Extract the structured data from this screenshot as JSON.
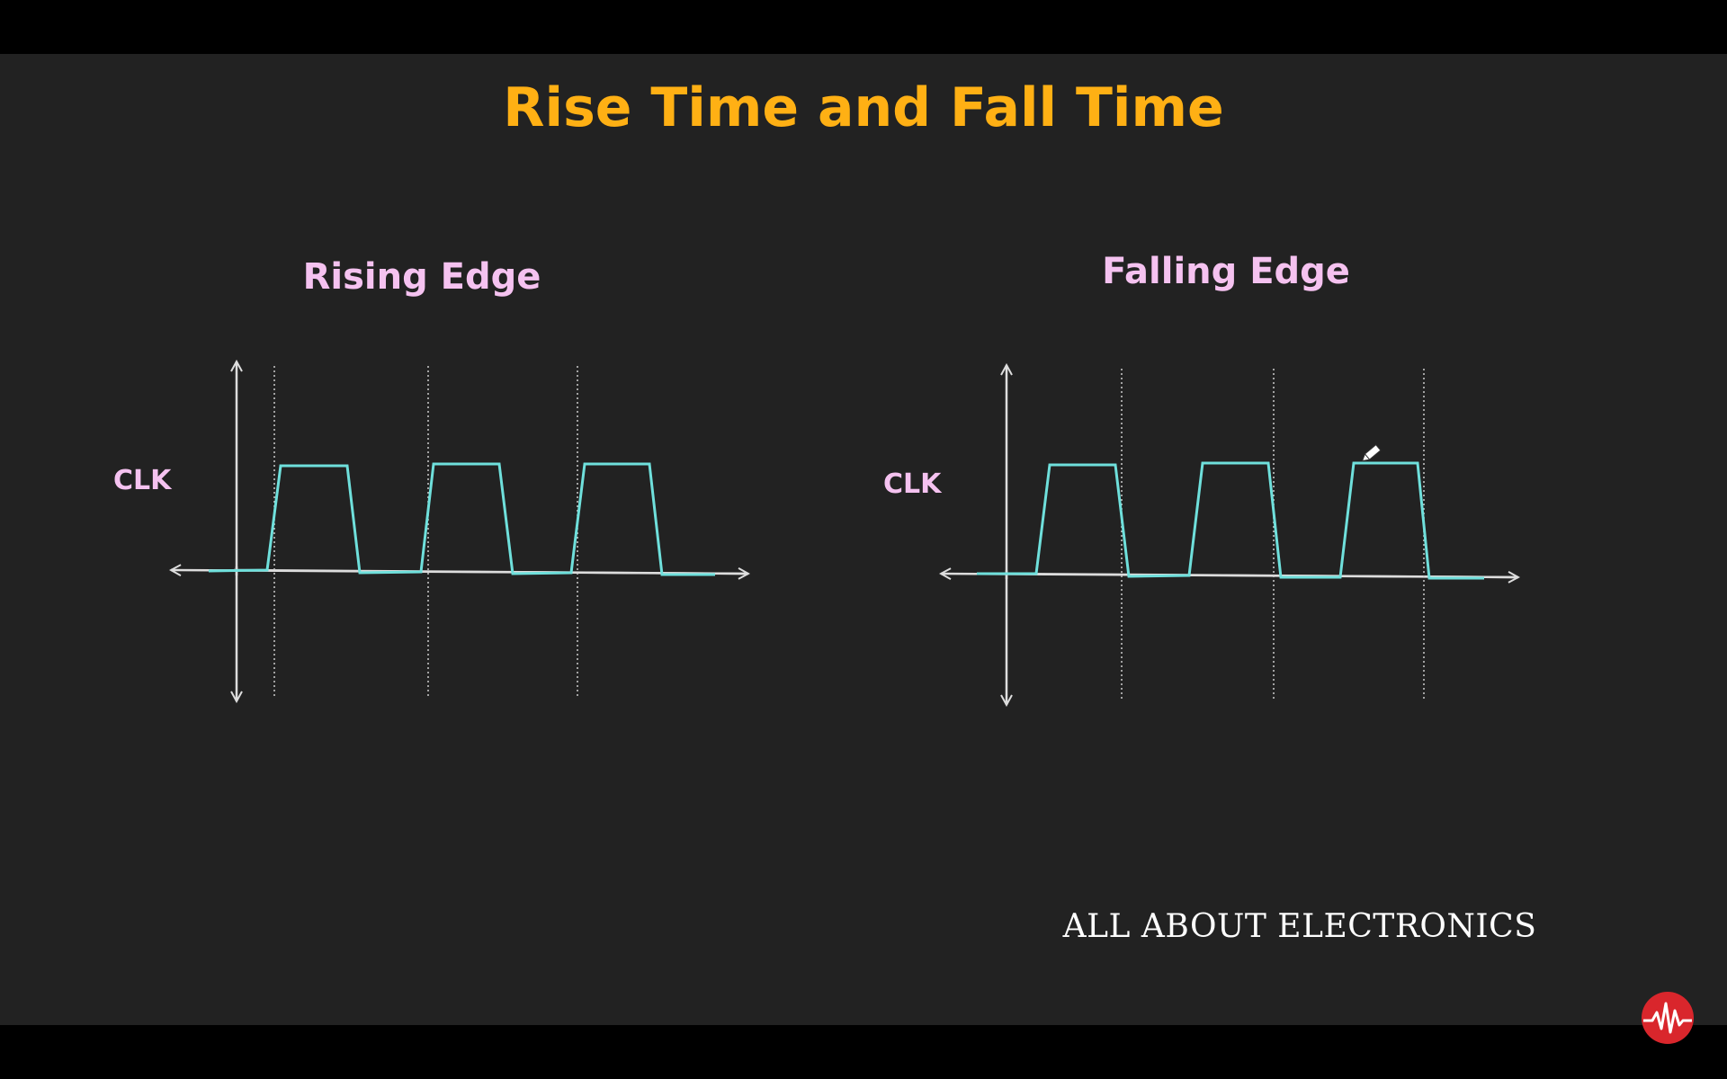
{
  "slide": {
    "title": "Rise Time and Fall Time",
    "brand": "ALL ABOUT ELECTRONICS"
  },
  "panels": [
    {
      "heading": "Rising Edge",
      "signal_label": "CLK",
      "marker": "rising-edge"
    },
    {
      "heading": "Falling Edge",
      "signal_label": "CLK",
      "marker": "falling-edge"
    }
  ],
  "colors": {
    "background": "#222222",
    "title": "#FFB014",
    "heading": "#F5C2F0",
    "waveform": "#6FE0DC",
    "axis": "#DDDDDD",
    "brand": "#FFFFFF",
    "logo": "#D9262C"
  },
  "icons": {
    "logo": "waveform-logo-icon",
    "cursor": "pencil-cursor-icon"
  }
}
